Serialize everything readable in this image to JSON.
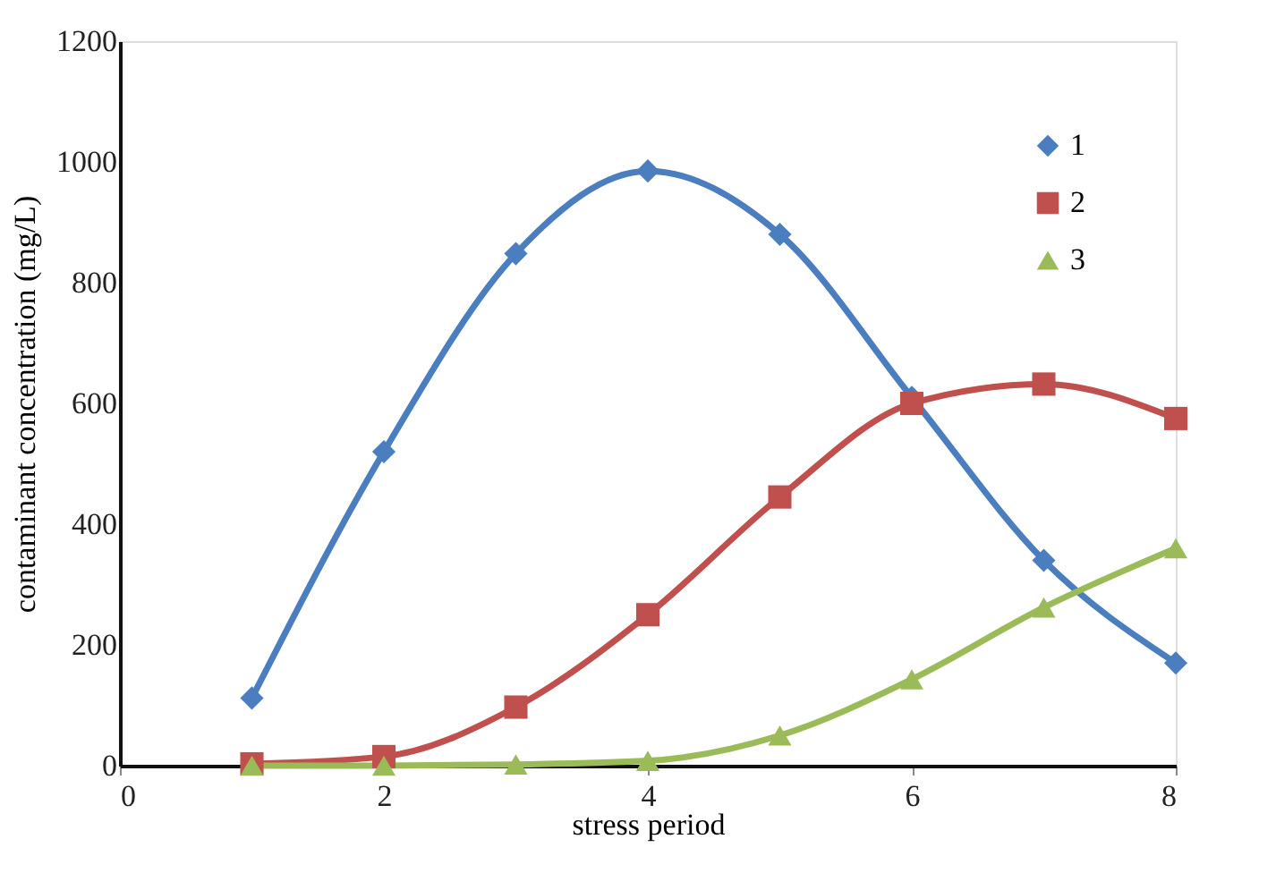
{
  "chart_data": {
    "type": "line",
    "xlabel": "stress period",
    "ylabel": "contaminant concentration (mg/L)",
    "x": [
      1,
      2,
      3,
      4,
      5,
      6,
      7,
      8
    ],
    "series": [
      {
        "name": "1",
        "color": "#4a7ebf",
        "marker": "diamond",
        "values": [
          112,
          520,
          848,
          985,
          880,
          610,
          340,
          170
        ]
      },
      {
        "name": "2",
        "color": "#c0504d",
        "marker": "square",
        "values": [
          3,
          15,
          97,
          250,
          445,
          600,
          632,
          575
        ]
      },
      {
        "name": "3",
        "color": "#9bbb59",
        "marker": "triangle",
        "values": [
          0,
          0,
          2,
          8,
          50,
          143,
          262,
          360
        ]
      }
    ],
    "xlim": [
      0,
      8
    ],
    "xticks": [
      0,
      2,
      4,
      6,
      8
    ],
    "ylim": [
      0,
      1200
    ],
    "yticks": [
      0,
      200,
      400,
      600,
      800,
      1000,
      1200
    ],
    "grid": false,
    "legend": "top right",
    "line_style": "solid"
  }
}
